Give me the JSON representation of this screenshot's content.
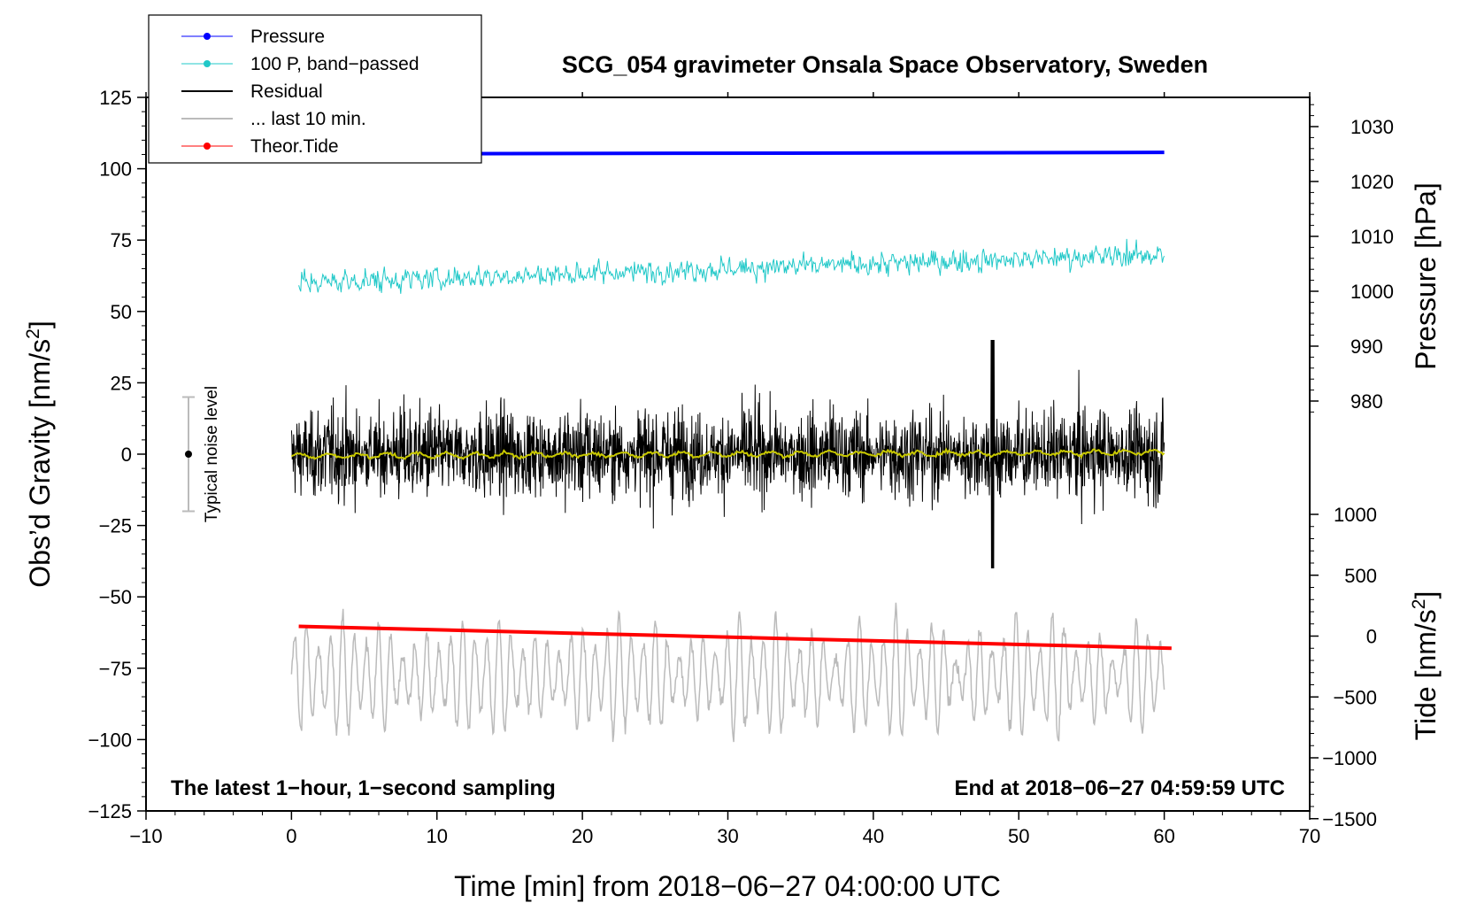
{
  "chart_data": {
    "type": "line",
    "title": "SCG_054 gravimeter Onsala Space Observatory, Sweden",
    "xlabel": "Time [min] from 2018−06−27 04:00:00 UTC",
    "ylabel_left": "Obs’d Gravity [nm/s",
    "ylabel_left_sup": "2",
    "ylabel_left_close": "]",
    "ylabel_right_pressure": "Pressure [hPa]",
    "ylabel_right_tide": "Tide [nm/s",
    "ylabel_right_tide_sup": "2",
    "ylabel_right_tide_close": "]",
    "xlim": [
      -10,
      70
    ],
    "ylim_left": [
      -125,
      125
    ],
    "pressure_range": [
      980,
      1030
    ],
    "tide_range": [
      -1500,
      1000
    ],
    "x_ticks": [
      "−10",
      "0",
      "10",
      "20",
      "30",
      "40",
      "50",
      "60",
      "70"
    ],
    "x_tick_values": [
      -10,
      0,
      10,
      20,
      30,
      40,
      50,
      60,
      70
    ],
    "y_ticks_left": [
      "125",
      "100",
      "75",
      "50",
      "25",
      "0",
      "−25",
      "−50",
      "−75",
      "−100",
      "−125"
    ],
    "y_tick_values_left": [
      125,
      100,
      75,
      50,
      25,
      0,
      -25,
      -50,
      -75,
      -100,
      -125
    ],
    "pressure_ticks": [
      "1030",
      "1020",
      "1010",
      "1000",
      "990",
      "980"
    ],
    "pressure_tick_values": [
      1030,
      1020,
      1010,
      1000,
      990,
      980
    ],
    "tide_ticks": [
      "1000",
      "500",
      "0",
      "−500",
      "−1000",
      "−1500"
    ],
    "tide_tick_values": [
      1000,
      500,
      0,
      -500,
      -1000,
      -1500
    ],
    "legend": [
      {
        "label": "Pressure",
        "color": "#0000ff",
        "marker": true
      },
      {
        "label": "100 P, band−passed",
        "color": "#20c8c8",
        "marker": true
      },
      {
        "label": "Residual",
        "color": "#000000",
        "marker": false
      },
      {
        "label": "... last 10 min.",
        "color": "#bbbbbb",
        "marker": false
      },
      {
        "label": "Theor.Tide",
        "color": "#ff0000",
        "marker": true
      }
    ],
    "legend_position": "top-left",
    "annotation_left": "The latest 1−hour, 1−second sampling",
    "annotation_right": "End at 2018−06−27 04:59:59 UTC",
    "noise_label": "Typical noise level",
    "noise_level_range": [
      -20,
      20
    ],
    "series": [
      {
        "name": "Pressure",
        "color": "#0000ff",
        "unit": "hPa",
        "x_range": [
          0,
          60
        ],
        "start": 1025.0,
        "end": 1025.3
      },
      {
        "name": "100 P, band-passed",
        "color": "#20c8c8",
        "unit": "nm/s2",
        "x_range": [
          0.5,
          60
        ],
        "start": 60,
        "end": 70,
        "amplitude": 5
      },
      {
        "name": "Residual",
        "color": "#000000",
        "unit": "nm/s2",
        "x_range": [
          0,
          60
        ],
        "mean": 0,
        "typical_amplitude": 18,
        "peaks": [
          {
            "x": 48.2,
            "y": 42
          },
          {
            "x": 48.5,
            "y": -42
          }
        ]
      },
      {
        "name": "Residual smoothed",
        "color": "#c8c800",
        "unit": "nm/s2",
        "x_range": [
          0,
          60
        ],
        "mean": 0
      },
      {
        "name": "... last 10 min.",
        "color": "#bbbbbb",
        "unit": "nm/s2",
        "x_range": [
          0,
          60
        ],
        "baseline": -78,
        "amplitude": 18
      },
      {
        "name": "Theor.Tide",
        "color": "#ff0000",
        "unit": "nm/s2",
        "x_range": [
          0.5,
          60.5
        ],
        "start": 80,
        "end": -100
      }
    ]
  }
}
